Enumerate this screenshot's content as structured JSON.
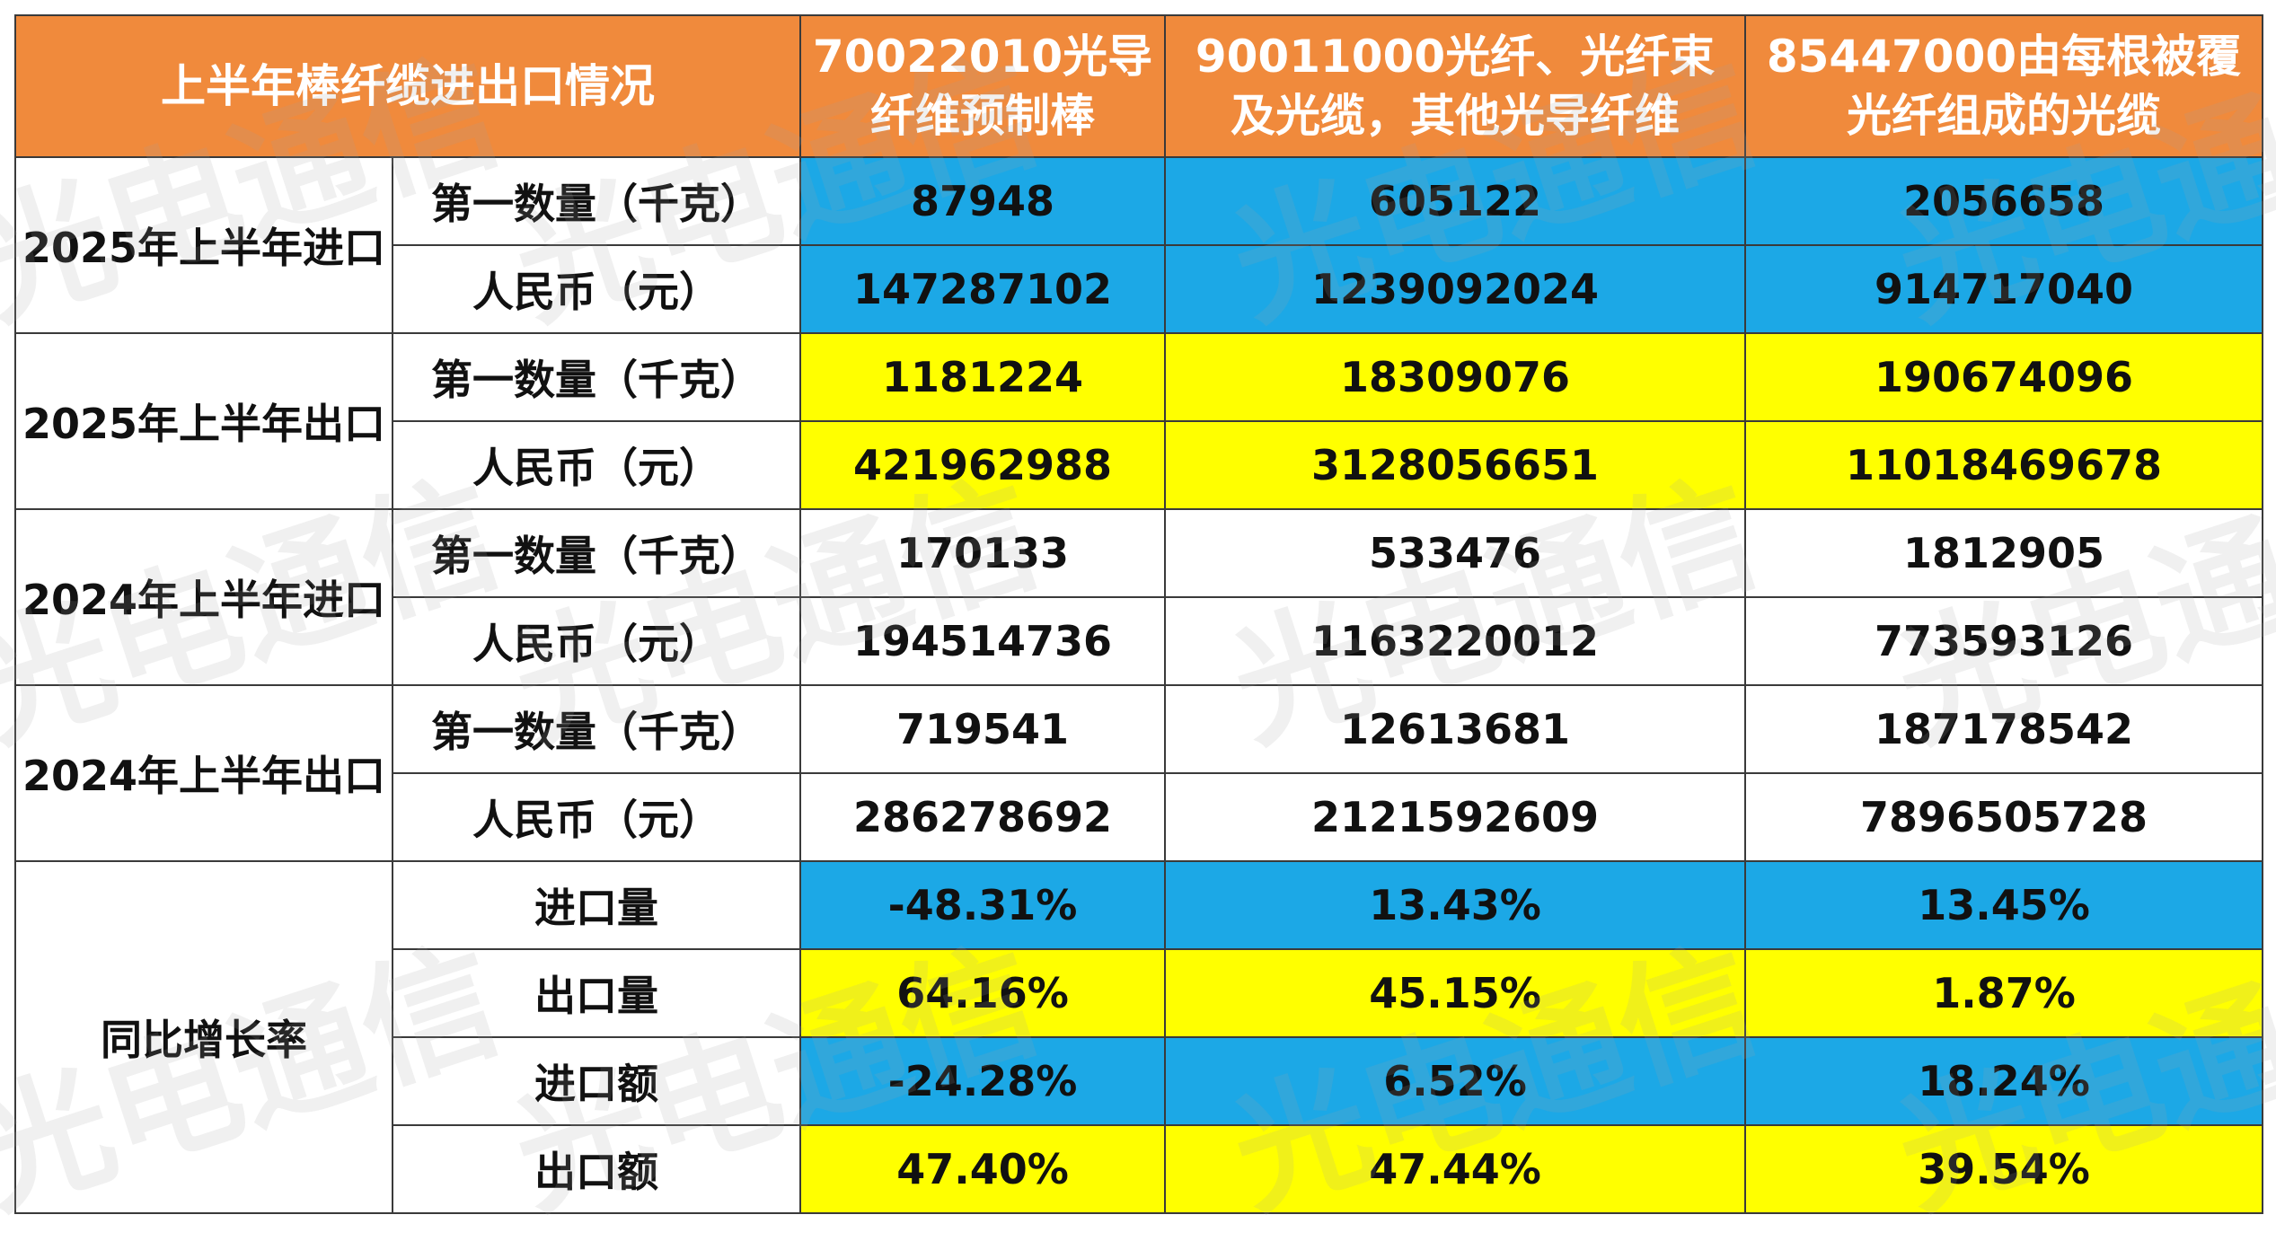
{
  "table": {
    "corner": "上半年棒纤缆进出口情况",
    "columns": [
      [
        "70022010光导",
        "纤维预制棒"
      ],
      [
        "90011000光纤、光纤束",
        "及光缆，其他光导纤维"
      ],
      [
        "85447000由每根被覆",
        "光纤组成的光缆"
      ]
    ],
    "groups": [
      {
        "label": "2025年上半年进口",
        "rows": [
          {
            "label": "第一数量（千克）",
            "values": [
              "87948",
              "605122",
              "2056658"
            ],
            "color": "blue"
          },
          {
            "label": "人民币（元）",
            "values": [
              "147287102",
              "1239092024",
              "914717040"
            ],
            "color": "blue"
          }
        ]
      },
      {
        "label": "2025年上半年出口",
        "rows": [
          {
            "label": "第一数量（千克）",
            "values": [
              "1181224",
              "18309076",
              "190674096"
            ],
            "color": "yellow"
          },
          {
            "label": "人民币（元）",
            "values": [
              "421962988",
              "3128056651",
              "11018469678"
            ],
            "color": "yellow"
          }
        ]
      },
      {
        "label": "2024年上半年进口",
        "rows": [
          {
            "label": "第一数量（千克）",
            "values": [
              "170133",
              "533476",
              "1812905"
            ],
            "color": "white"
          },
          {
            "label": "人民币（元）",
            "values": [
              "194514736",
              "1163220012",
              "773593126"
            ],
            "color": "white"
          }
        ]
      },
      {
        "label": "2024年上半年出口",
        "rows": [
          {
            "label": "第一数量（千克）",
            "values": [
              "719541",
              "12613681",
              "187178542"
            ],
            "color": "white"
          },
          {
            "label": "人民币（元）",
            "values": [
              "286278692",
              "2121592609",
              "7896505728"
            ],
            "color": "white"
          }
        ]
      },
      {
        "label": "同比增长率",
        "rows": [
          {
            "label": "进口量",
            "values": [
              "-48.31%",
              "13.43%",
              "13.45%"
            ],
            "color": "blue"
          },
          {
            "label": "出口量",
            "values": [
              "64.16%",
              "45.15%",
              "1.87%"
            ],
            "color": "yellow"
          },
          {
            "label": "进口额",
            "values": [
              "-24.28%",
              "6.52%",
              "18.24%"
            ],
            "color": "blue"
          },
          {
            "label": "出口额",
            "values": [
              "47.40%",
              "47.44%",
              "39.54%"
            ],
            "color": "yellow"
          }
        ]
      }
    ]
  },
  "watermark": "光电通信",
  "colors": {
    "header": "#f08a3c",
    "blue": "#1ca8e6",
    "yellow": "#ffff00"
  }
}
